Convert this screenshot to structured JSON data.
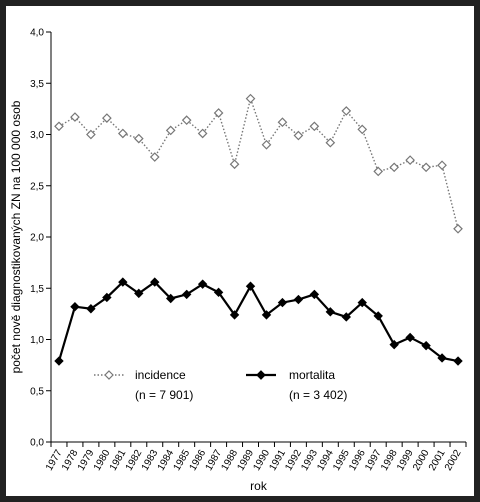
{
  "chart_data": {
    "type": "line",
    "xlabel": "rok",
    "ylabel": "počet nově diagnostikovaných ZN na 100 000 osob",
    "ylim": [
      0,
      4
    ],
    "yticks": [
      "0,0",
      "0,5",
      "1,0",
      "1,5",
      "2,0",
      "2,5",
      "3,0",
      "3,5",
      "4,0"
    ],
    "x": [
      "1977",
      "1978",
      "1979",
      "1980",
      "1981",
      "1982",
      "1983",
      "1984",
      "1985",
      "1986",
      "1987",
      "1988",
      "1989",
      "1990",
      "1991",
      "1992",
      "1993",
      "1994",
      "1995",
      "1996",
      "1997",
      "1998",
      "1999",
      "2000",
      "2001",
      "2002"
    ],
    "grid": false,
    "series": [
      {
        "name": "incidence",
        "note": "(n = 7 901)",
        "style": "dotted-open-diamond",
        "color": "#888888",
        "values": [
          3.08,
          3.17,
          3.0,
          3.16,
          3.01,
          2.96,
          2.78,
          3.04,
          3.14,
          3.01,
          3.21,
          2.71,
          3.35,
          2.9,
          3.12,
          2.99,
          3.08,
          2.92,
          3.23,
          3.05,
          2.64,
          2.68,
          2.75,
          2.68,
          2.7,
          2.08
        ]
      },
      {
        "name": "mortalita",
        "note": "(n = 3 402)",
        "style": "solid-filled-diamond",
        "color": "#000000",
        "values": [
          0.79,
          1.32,
          1.3,
          1.41,
          1.56,
          1.45,
          1.56,
          1.4,
          1.44,
          1.54,
          1.46,
          1.24,
          1.52,
          1.24,
          1.36,
          1.39,
          1.44,
          1.27,
          1.22,
          1.36,
          1.23,
          0.95,
          1.02,
          0.94,
          0.82,
          0.79
        ]
      }
    ],
    "legend": "inside-bottom"
  }
}
